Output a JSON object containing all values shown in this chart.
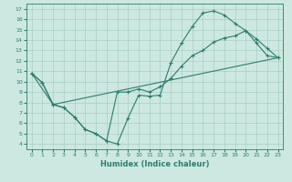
{
  "xlabel": "Humidex (Indice chaleur)",
  "bg_color": "#cce8e0",
  "line_color": "#2e7d6e",
  "xlim": [
    -0.5,
    23.5
  ],
  "ylim": [
    3.5,
    17.5
  ],
  "xticks": [
    0,
    1,
    2,
    3,
    4,
    5,
    6,
    7,
    8,
    9,
    10,
    11,
    12,
    13,
    14,
    15,
    16,
    17,
    18,
    19,
    20,
    21,
    22,
    23
  ],
  "yticks": [
    4,
    5,
    6,
    7,
    8,
    9,
    10,
    11,
    12,
    13,
    14,
    15,
    16,
    17
  ],
  "line1_x": [
    0,
    1,
    2,
    3,
    4,
    5,
    6,
    7,
    8,
    9,
    10,
    11,
    12,
    13,
    14,
    15,
    16,
    17,
    18,
    19,
    20,
    21,
    22,
    23
  ],
  "line1_y": [
    10.8,
    9.9,
    7.8,
    7.5,
    6.6,
    5.4,
    5.0,
    4.3,
    4.0,
    6.5,
    8.7,
    8.6,
    8.7,
    11.8,
    13.7,
    15.3,
    16.6,
    16.8,
    16.4,
    15.6,
    14.9,
    14.1,
    13.2,
    12.3
  ],
  "line2_x": [
    0,
    1,
    2,
    3,
    4,
    5,
    6,
    7,
    8,
    9,
    10,
    11,
    12,
    13,
    14,
    15,
    16,
    17,
    18,
    19,
    20,
    21,
    22,
    23
  ],
  "line2_y": [
    10.8,
    9.9,
    7.8,
    7.5,
    6.6,
    5.4,
    5.0,
    4.3,
    9.0,
    9.0,
    9.3,
    9.0,
    9.5,
    10.3,
    11.5,
    12.5,
    13.0,
    13.8,
    14.2,
    14.4,
    14.9,
    13.7,
    12.5,
    12.3
  ],
  "line3_x": [
    0,
    2,
    23
  ],
  "line3_y": [
    10.8,
    7.8,
    12.3
  ]
}
